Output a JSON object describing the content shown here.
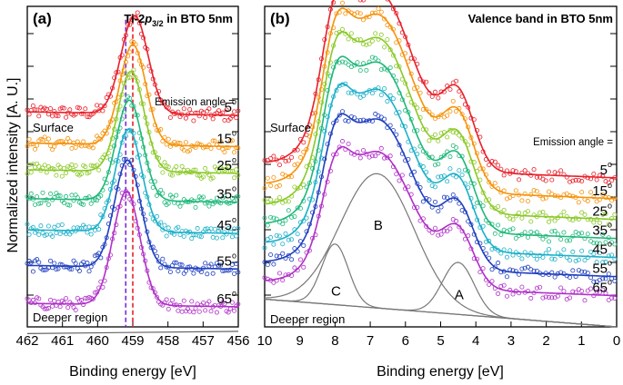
{
  "ylabel": "Normalized intensity [A. U.]",
  "chart_data": [
    {
      "type": "line",
      "panel_label": "(a)",
      "title_main": "Ti-2",
      "title_p": "p",
      "title_sub": "3/2",
      "title_rest": " in BTO 5nm",
      "xlabel": "Binding energy [eV]",
      "xlim": [
        462,
        456
      ],
      "xticks": [
        462,
        461,
        460,
        459,
        458,
        457,
        456
      ],
      "surface_label": "Surface",
      "deeper_label": "Deeper region",
      "emission_label": "Emission angle =",
      "dashed_lines": [
        {
          "x": 459.2,
          "color": "#7a28d8"
        },
        {
          "x": 459.0,
          "color": "#e8202a"
        }
      ],
      "series": [
        {
          "name": "5",
          "angle_label": "5",
          "color": "#e8202a",
          "baseline": 4.75,
          "peak_x": 458.95,
          "peak_height": 2.2,
          "width": 0.38
        },
        {
          "name": "15",
          "angle_label": "15",
          "color": "#f5920a",
          "baseline": 4.05,
          "peak_x": 459.0,
          "peak_height": 2.25,
          "width": 0.37
        },
        {
          "name": "25",
          "angle_label": "25",
          "color": "#8ac926",
          "baseline": 3.45,
          "peak_x": 459.05,
          "peak_height": 2.25,
          "width": 0.37
        },
        {
          "name": "35",
          "angle_label": "35",
          "color": "#1fb87a",
          "baseline": 2.8,
          "peak_x": 459.1,
          "peak_height": 2.25,
          "width": 0.37
        },
        {
          "name": "45",
          "angle_label": "45",
          "color": "#1bb0c8",
          "baseline": 2.1,
          "peak_x": 459.12,
          "peak_height": 2.3,
          "width": 0.37
        },
        {
          "name": "55",
          "angle_label": "55",
          "color": "#1f3fbf",
          "baseline": 1.3,
          "peak_x": 459.15,
          "peak_height": 2.4,
          "width": 0.37
        },
        {
          "name": "65",
          "angle_label": "65",
          "color": "#b030c8",
          "baseline": 0.45,
          "peak_x": 459.18,
          "peak_height": 2.55,
          "width": 0.38
        }
      ],
      "background_line": {
        "color": "#666666",
        "left": 0.0,
        "right": 0.05
      }
    },
    {
      "type": "line",
      "panel_label": "(b)",
      "title": "Valence band in BTO 5nm",
      "xlabel": "Binding energy [eV]",
      "xlim": [
        10,
        0
      ],
      "xticks": [
        10,
        9,
        8,
        7,
        6,
        5,
        4,
        3,
        2,
        1,
        0
      ],
      "surface_label": "Surface",
      "deeper_label": "Deeper region",
      "emission_label": "Emission angle =",
      "components": [
        {
          "name": "A",
          "center": 4.5,
          "height": 0.6,
          "width": 0.45,
          "color": "#777777"
        },
        {
          "name": "B",
          "center": 6.8,
          "height": 1.55,
          "width": 1.05,
          "color": "#777777"
        },
        {
          "name": "C",
          "center": 8.0,
          "height": 0.7,
          "width": 0.38,
          "color": "#777777"
        }
      ],
      "series": [
        {
          "name": "5",
          "angle_label": "5",
          "color": "#e8202a",
          "baseline": 1.72,
          "scale": 1.32
        },
        {
          "name": "15",
          "angle_label": "15",
          "color": "#f5920a",
          "baseline": 1.48,
          "scale": 1.3
        },
        {
          "name": "25",
          "angle_label": "25",
          "color": "#8ac926",
          "baseline": 1.24,
          "scale": 1.28
        },
        {
          "name": "35",
          "angle_label": "35",
          "color": "#1fb87a",
          "baseline": 1.02,
          "scale": 1.24
        },
        {
          "name": "45",
          "angle_label": "45",
          "color": "#1bb0c8",
          "baseline": 0.8,
          "scale": 1.18
        },
        {
          "name": "55",
          "angle_label": "55",
          "color": "#1f3fbf",
          "baseline": 0.58,
          "scale": 1.1
        },
        {
          "name": "65",
          "angle_label": "65",
          "color": "#b030c8",
          "baseline": 0.36,
          "scale": 1.0
        }
      ],
      "background_line": {
        "color": "#666666",
        "left": 0.32,
        "right": 0.0
      }
    }
  ]
}
